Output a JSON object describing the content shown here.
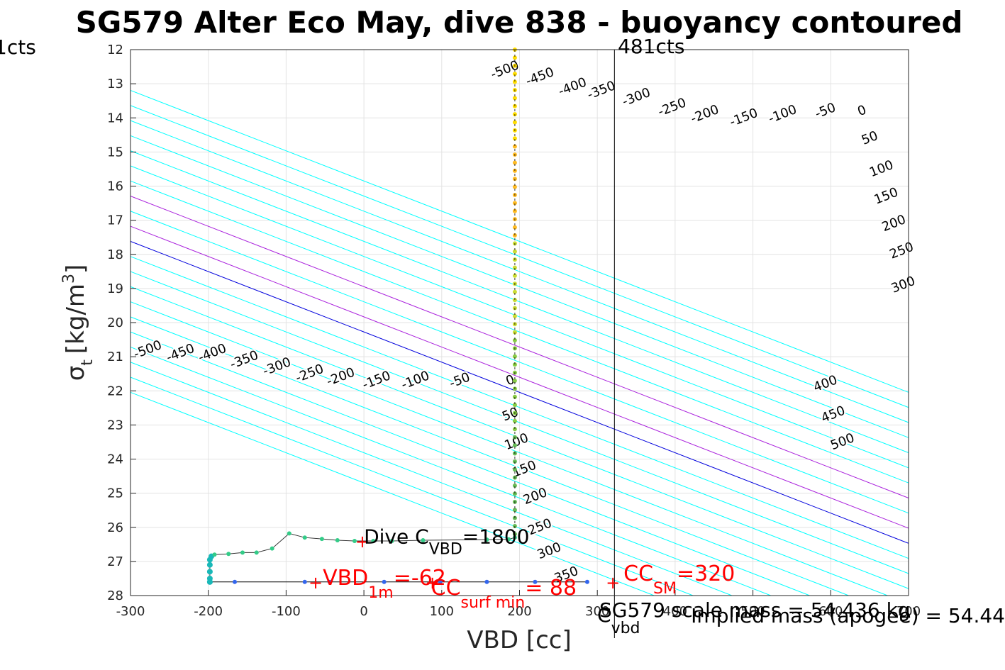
{
  "chart_data": {
    "type": "line",
    "title": "SG579 Alter Eco May, dive 838 - buoyancy contoured",
    "xlabel": "VBD [cc]",
    "ylabel_main": "σ",
    "ylabel_sub": "t",
    "ylabel_unit": "[kg/m",
    "ylabel_sup": "3",
    "ylabel_end": "]",
    "xlim": [
      -300,
      700
    ],
    "ylim": [
      12,
      28
    ],
    "y_reversed": true,
    "grid": true,
    "xticks": [
      -300,
      -200,
      -100,
      0,
      100,
      200,
      300,
      400,
      500,
      600,
      700
    ],
    "xtick_labels": [
      "-300",
      "-200",
      "-100",
      "0",
      "100",
      "200",
      "300",
      "400",
      "500",
      "600",
      "700"
    ],
    "yticks": [
      12,
      13,
      14,
      15,
      16,
      17,
      18,
      19,
      20,
      21,
      22,
      23,
      24,
      25,
      26,
      27,
      28
    ],
    "ytick_labels": [
      "12",
      "13",
      "14",
      "15",
      "16",
      "17",
      "18",
      "19",
      "20",
      "21",
      "22",
      "23",
      "24",
      "25",
      "26",
      "27",
      "28"
    ],
    "contours": {
      "slope_cc_per_sigma": 113,
      "zero_at": {
        "vbd": 195,
        "sigma": 22
      },
      "levels": [
        -500,
        -450,
        -400,
        -350,
        -300,
        -250,
        -200,
        -150,
        -100,
        -50,
        0,
        50,
        100,
        150,
        200,
        250,
        300,
        350,
        400,
        450,
        500
      ],
      "colors": {
        "zero": "#0000dd",
        "highlight": "#aa22dd",
        "default": "#00ffff"
      },
      "highlight_levels": [
        50,
        150
      ]
    },
    "contour_labels": [
      {
        "text": "-500",
        "vbd": 183,
        "sigma": 12.7
      },
      {
        "text": "-450",
        "vbd": 228,
        "sigma": 12.9
      },
      {
        "text": "-400",
        "vbd": 270,
        "sigma": 13.2
      },
      {
        "text": "-350",
        "vbd": 307,
        "sigma": 13.3
      },
      {
        "text": "-300",
        "vbd": 352,
        "sigma": 13.5
      },
      {
        "text": "-250",
        "vbd": 398,
        "sigma": 13.8
      },
      {
        "text": "-200",
        "vbd": 440,
        "sigma": 14.0
      },
      {
        "text": "-150",
        "vbd": 490,
        "sigma": 14.1
      },
      {
        "text": "-100",
        "vbd": 540,
        "sigma": 14.0
      },
      {
        "text": "-50",
        "vbd": 595,
        "sigma": 13.9
      },
      {
        "text": "0",
        "vbd": 642,
        "sigma": 13.9
      },
      {
        "text": "50",
        "vbd": 652,
        "sigma": 14.7
      },
      {
        "text": "100",
        "vbd": 667,
        "sigma": 15.6
      },
      {
        "text": "150",
        "vbd": 673,
        "sigma": 16.4
      },
      {
        "text": "200",
        "vbd": 683,
        "sigma": 17.2
      },
      {
        "text": "250",
        "vbd": 693,
        "sigma": 18.0
      },
      {
        "text": "300",
        "vbd": 695,
        "sigma": 19.0
      },
      {
        "text": "-500",
        "vbd": -276,
        "sigma": 20.9
      },
      {
        "text": "-450",
        "vbd": -234,
        "sigma": 21.0
      },
      {
        "text": "-400",
        "vbd": -193,
        "sigma": 21.0
      },
      {
        "text": "-350",
        "vbd": -152,
        "sigma": 21.2
      },
      {
        "text": "-300",
        "vbd": -110,
        "sigma": 21.4
      },
      {
        "text": "-250",
        "vbd": -68,
        "sigma": 21.6
      },
      {
        "text": "-200",
        "vbd": -28,
        "sigma": 21.7
      },
      {
        "text": "-150",
        "vbd": 18,
        "sigma": 21.8
      },
      {
        "text": "-100",
        "vbd": 68,
        "sigma": 21.8
      },
      {
        "text": "-50",
        "vbd": 125,
        "sigma": 21.8
      },
      {
        "text": "0",
        "vbd": 190,
        "sigma": 21.8
      },
      {
        "text": "50",
        "vbd": 190,
        "sigma": 22.8
      },
      {
        "text": "100",
        "vbd": 198,
        "sigma": 23.6
      },
      {
        "text": "150",
        "vbd": 208,
        "sigma": 24.4
      },
      {
        "text": "200",
        "vbd": 222,
        "sigma": 25.2
      },
      {
        "text": "250",
        "vbd": 228,
        "sigma": 26.1
      },
      {
        "text": "300",
        "vbd": 240,
        "sigma": 26.8
      },
      {
        "text": "350",
        "vbd": 262,
        "sigma": 27.5
      },
      {
        "text": "400",
        "vbd": 595,
        "sigma": 21.9
      },
      {
        "text": "450",
        "vbd": 605,
        "sigma": 22.8
      },
      {
        "text": "500",
        "vbd": 617,
        "sigma": 23.6
      }
    ],
    "vertical_line": {
      "vbd": 322,
      "label": "481cts"
    },
    "left_edge_label": "1cts",
    "series": [
      {
        "type": "dive",
        "color": "#333333",
        "points": [
          {
            "vbd": -198,
            "sigma": 27.6
          },
          {
            "vbd": -198,
            "sigma": 27.5
          },
          {
            "vbd": -198,
            "sigma": 27.3
          },
          {
            "vbd": -198,
            "sigma": 27.1
          },
          {
            "vbd": -198,
            "sigma": 26.95
          },
          {
            "vbd": -196,
            "sigma": 26.85
          },
          {
            "vbd": -192,
            "sigma": 26.8
          },
          {
            "vbd": -174,
            "sigma": 26.78
          },
          {
            "vbd": -156,
            "sigma": 26.74
          },
          {
            "vbd": -138,
            "sigma": 26.74
          },
          {
            "vbd": -118,
            "sigma": 26.62
          },
          {
            "vbd": -96,
            "sigma": 26.18
          },
          {
            "vbd": -76,
            "sigma": 26.3
          },
          {
            "vbd": -54,
            "sigma": 26.34
          },
          {
            "vbd": -34,
            "sigma": 26.38
          },
          {
            "vbd": -12,
            "sigma": 26.4
          },
          {
            "vbd": 12,
            "sigma": 26.4
          },
          {
            "vbd": 36,
            "sigma": 26.4
          },
          {
            "vbd": 76,
            "sigma": 26.38
          },
          {
            "vbd": 158,
            "sigma": 26.36
          },
          {
            "vbd": 186,
            "sigma": 26.35
          },
          {
            "vbd": 194,
            "sigma": 26.3
          }
        ]
      },
      {
        "type": "vertical_profile",
        "vbd": 194,
        "sigma_from": 12.0,
        "sigma_to": 26.2,
        "colors": [
          "#ffdd00",
          "#ffbb22",
          "#ccdd33",
          "#88cc44",
          "#66bb55"
        ]
      },
      {
        "type": "climb",
        "color": "#000000",
        "sigma": 27.6,
        "vbd_from": -198,
        "vbd_to": 287,
        "point_vbds": [
          -198,
          -166,
          -76,
          -44,
          26,
          98,
          158,
          220,
          287
        ]
      }
    ],
    "annotations": {
      "dive_c_vbd": {
        "label": "Dive C",
        "sub": "VBD",
        "value": "=1800",
        "vbd": 0,
        "sigma": 26.2
      },
      "vbd_1m": {
        "label": "VBD",
        "sub": "1m",
        "value": "=-62",
        "marker_vbd": -62,
        "sigma": 27.6
      },
      "cc_surf_min": {
        "label": "CC",
        "sub": "surf min",
        "value": "= 88",
        "marker_vbd": 88,
        "sigma": 27.6
      },
      "cc_sm": {
        "label": "CC",
        "sub": "SM",
        "value": "=320",
        "marker_vbd": 320,
        "sigma": 27.6
      },
      "marker_dive": {
        "vbd": -2,
        "sigma": 26.4
      }
    },
    "bottom_overlap_text": {
      "c_vbd": "C",
      "c_vbd_sub": "vbd",
      "scale_mass": "SG579 scale mass = 54.436 kg",
      "implied_mass": "Implied mass (apogee) = 54.44"
    }
  }
}
